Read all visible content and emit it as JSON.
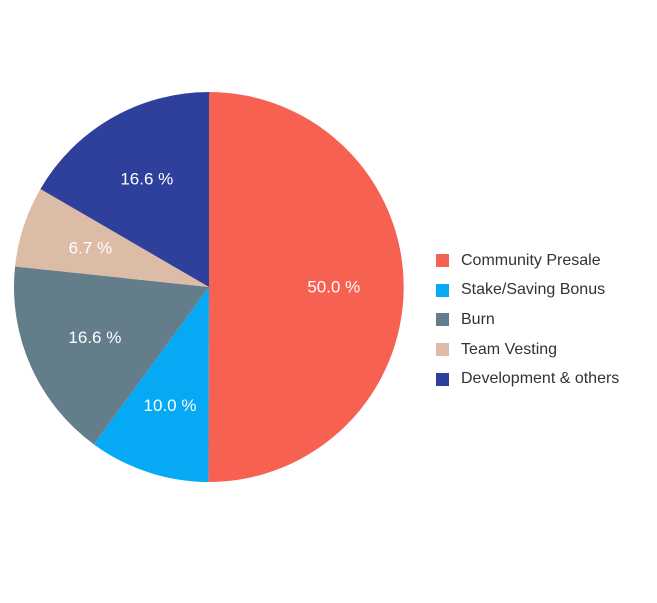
{
  "chart_data": {
    "type": "pie",
    "start_angle_deg": 0,
    "direction": "clockwise",
    "slices": [
      {
        "label": "Community Presale",
        "value": 50.0,
        "display": "50.0 %",
        "color": "#f76152"
      },
      {
        "label": "Stake/Saving Bonus",
        "value": 10.0,
        "display": "10.0 %",
        "color": "#06a9f4"
      },
      {
        "label": "Burn",
        "value": 16.6,
        "display": "16.6 %",
        "color": "#637d8b"
      },
      {
        "label": "Team Vesting",
        "value": 6.7,
        "display": "6.7 %",
        "color": "#dcbba7"
      },
      {
        "label": "Development & others",
        "value": 16.6,
        "display": "16.6 %",
        "color": "#2f409c"
      }
    ],
    "legend_position": "right"
  }
}
